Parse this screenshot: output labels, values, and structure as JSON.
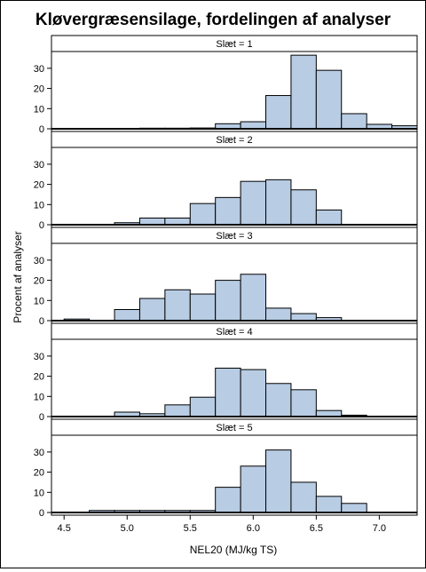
{
  "chart_data": {
    "type": "bar",
    "subtype": "histogram-panel",
    "title": "Kløvergræsensilage, fordelingen af analyser",
    "xlabel": "NEL20 (MJ/kg TS)",
    "ylabel": "Procent af analyser",
    "bin_width": 0.2,
    "xlim": [
      4.4,
      7.3
    ],
    "ylim": [
      0,
      37
    ],
    "x_ticks": [
      4.5,
      5.0,
      5.5,
      6.0,
      6.5,
      7.0
    ],
    "x_tick_labels": [
      "4.5",
      "5.0",
      "5.5",
      "6.0",
      "6.5",
      "7.0"
    ],
    "y_ticks": [
      0,
      10,
      20,
      30
    ],
    "y_tick_labels": [
      "0",
      "10",
      "20",
      "30"
    ],
    "bar_fill": "#b8cce4",
    "bar_stroke": "#000000",
    "panels": [
      {
        "label": "Slæt = 1",
        "bins": [
          {
            "start": 4.9,
            "value": 0.1
          },
          {
            "start": 5.1,
            "value": 0.3
          },
          {
            "start": 5.3,
            "value": 0.3
          },
          {
            "start": 5.5,
            "value": 0.4
          },
          {
            "start": 5.7,
            "value": 2.5
          },
          {
            "start": 5.9,
            "value": 3.5
          },
          {
            "start": 6.1,
            "value": 16.5
          },
          {
            "start": 6.3,
            "value": 36.5
          },
          {
            "start": 6.5,
            "value": 29
          },
          {
            "start": 6.7,
            "value": 7.5
          },
          {
            "start": 6.9,
            "value": 2.2
          },
          {
            "start": 7.1,
            "value": 1.5
          }
        ]
      },
      {
        "label": "Slæt = 2",
        "bins": [
          {
            "start": 4.9,
            "value": 1
          },
          {
            "start": 5.1,
            "value": 3.3
          },
          {
            "start": 5.3,
            "value": 3.3
          },
          {
            "start": 5.5,
            "value": 10.5
          },
          {
            "start": 5.7,
            "value": 13.5
          },
          {
            "start": 5.9,
            "value": 21.5
          },
          {
            "start": 6.1,
            "value": 22.3
          },
          {
            "start": 6.3,
            "value": 17.3
          },
          {
            "start": 6.5,
            "value": 7.3
          }
        ]
      },
      {
        "label": "Slæt = 3",
        "bins": [
          {
            "start": 4.5,
            "value": 0.8
          },
          {
            "start": 4.9,
            "value": 5.5
          },
          {
            "start": 5.1,
            "value": 11
          },
          {
            "start": 5.3,
            "value": 15.3
          },
          {
            "start": 5.5,
            "value": 13.2
          },
          {
            "start": 5.7,
            "value": 20
          },
          {
            "start": 5.9,
            "value": 23
          },
          {
            "start": 6.1,
            "value": 6.2
          },
          {
            "start": 6.3,
            "value": 3.5
          },
          {
            "start": 6.5,
            "value": 1.5
          }
        ]
      },
      {
        "label": "Slæt = 4",
        "bins": [
          {
            "start": 4.9,
            "value": 2.2
          },
          {
            "start": 5.1,
            "value": 1.4
          },
          {
            "start": 5.3,
            "value": 5.8
          },
          {
            "start": 5.5,
            "value": 9.6
          },
          {
            "start": 5.7,
            "value": 24
          },
          {
            "start": 5.9,
            "value": 23.3
          },
          {
            "start": 6.1,
            "value": 16.4
          },
          {
            "start": 6.3,
            "value": 13.3
          },
          {
            "start": 6.5,
            "value": 3
          },
          {
            "start": 6.7,
            "value": 0.7
          }
        ]
      },
      {
        "label": "Slæt = 5",
        "bins": [
          {
            "start": 4.7,
            "value": 1
          },
          {
            "start": 4.9,
            "value": 1
          },
          {
            "start": 5.1,
            "value": 1
          },
          {
            "start": 5.3,
            "value": 1
          },
          {
            "start": 5.5,
            "value": 1
          },
          {
            "start": 5.7,
            "value": 12.5
          },
          {
            "start": 5.9,
            "value": 23
          },
          {
            "start": 6.1,
            "value": 31
          },
          {
            "start": 6.3,
            "value": 15
          },
          {
            "start": 6.5,
            "value": 8
          },
          {
            "start": 6.7,
            "value": 4.5
          }
        ]
      }
    ]
  }
}
